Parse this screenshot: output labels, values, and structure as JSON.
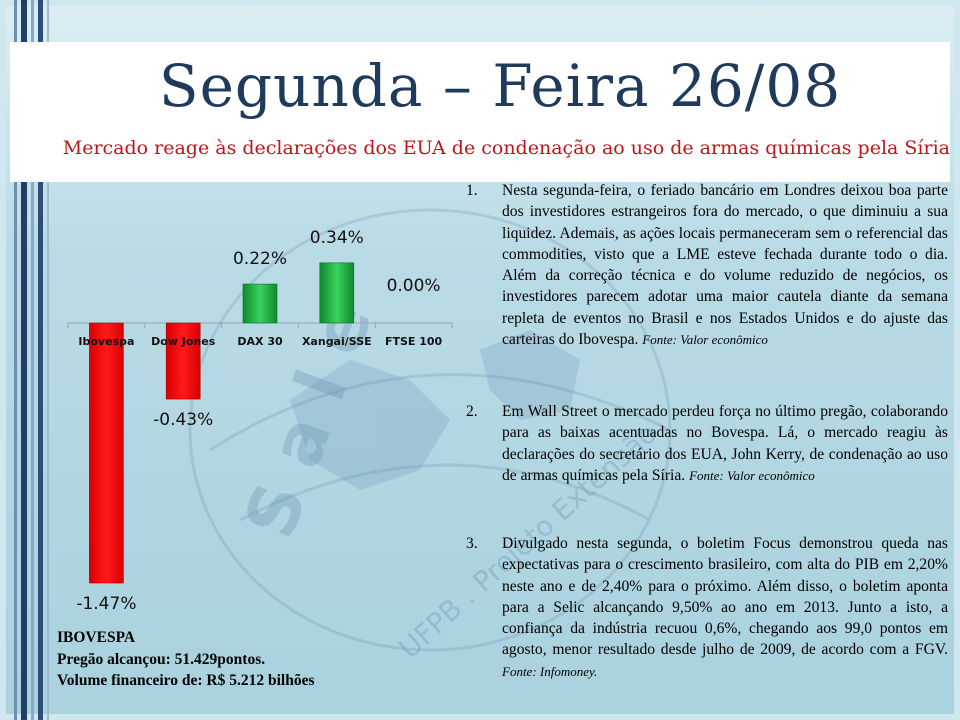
{
  "slide": {
    "title": "Segunda – Feira 26/08",
    "subtitle": "Mercado reage às declarações dos EUA de condenação ao uso de armas químicas pela Síria"
  },
  "chart_data": {
    "type": "bar",
    "categories": [
      "Ibovespa",
      "Dow Jones",
      "DAX 30",
      "Xangai/SSE",
      "FTSE 100"
    ],
    "values": [
      -1.47,
      -0.43,
      0.22,
      0.34,
      0.0
    ],
    "data_labels": [
      "-1.47%",
      "-0.43%",
      "0.22%",
      "0.34%",
      "0.00%"
    ],
    "ylim": [
      -1.6,
      0.4
    ],
    "grid": false,
    "colors": {
      "negative": "#ff1a1a",
      "positive": "#1aa53a"
    }
  },
  "news": [
    {
      "num": "1.",
      "text": "Nesta segunda-feira, o feriado bancário em Londres deixou boa parte dos investidores estrangeiros fora do mercado, o que diminuiu a sua liquidez. Ademais, as ações locais permaneceram sem o referencial das commodities, visto que a LME esteve fechada durante todo o dia. Além da correção técnica e do volume reduzido de negócios, os investidores parecem adotar uma maior cautela diante da semana repleta de eventos no Brasil e nos Estados Unidos e do ajuste das carteiras do Ibovespa.",
      "source": "Fonte: Valor econômico"
    },
    {
      "num": "2.",
      "text": "Em Wall Street o mercado perdeu força no último pregão, colaborando para as baixas acentuadas no Bovespa. Lá, o mercado reagiu às declarações do secretário dos EUA, John Kerry, de condenação ao uso de armas químicas pela Síria.",
      "source": "Fonte: Valor econômico"
    },
    {
      "num": "3.",
      "text": "Divulgado nesta segunda, o boletim Focus demonstrou queda nas expectativas para o crescimento brasileiro, com alta do PIB em 2,20% neste ano e de 2,40% para o próximo. Além disso, o boletim aponta para a Selic alcançando 9,50% ao ano em 2013. Junto a isto, a confiança da indústria recuou 0,6%, chegando aos 99,0 pontos em agosto, menor resultado desde julho de 2009, de acordo com a FGV.",
      "source": "Fonte: Infomoney."
    }
  ],
  "ibovespa": {
    "heading": "IBOVESPA",
    "pregao": "Pregão alcançou: 51.429pontos.",
    "volume": "Volume financeiro de:  R$ 5.212 bilhões"
  },
  "watermark": {
    "text": "UFPB . Projeto Extensão",
    "logo_letters": "S a l e"
  }
}
